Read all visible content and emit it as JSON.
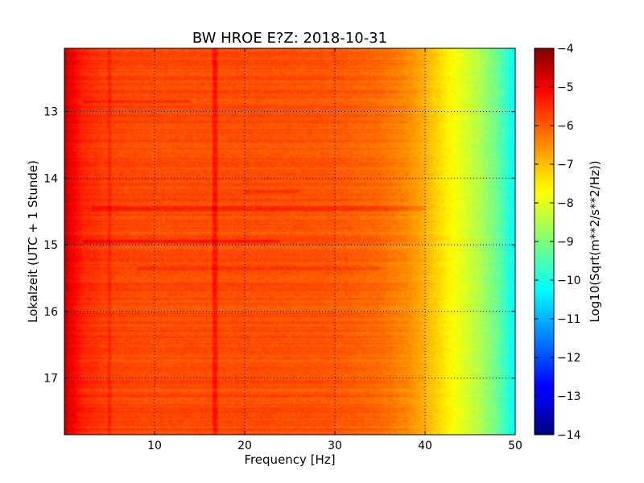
{
  "chart_data": {
    "type": "heatmap",
    "title": "BW HROE E?Z: 2018-10-31",
    "xlabel": "Frequency [Hz]",
    "ylabel": "Lokalzeit (UTC + 1 Stunde)",
    "xlim": [
      0,
      50
    ],
    "ylim": [
      17.85,
      12.05
    ],
    "x_ticks": [
      10,
      20,
      30,
      40,
      50
    ],
    "y_ticks": [
      13,
      14,
      15,
      16,
      17
    ],
    "grid": true,
    "colorbar": {
      "label": "Log10(Sqrt(m**2/s**2/Hz))",
      "range": [
        -14,
        -4
      ],
      "ticks": [
        -4,
        -5,
        -6,
        -7,
        -8,
        -9,
        -10,
        -11,
        -12,
        -13,
        -14
      ],
      "colormap": "jet"
    },
    "spectral_profile": {
      "frequency_hz": [
        0,
        0.5,
        2,
        5,
        10,
        15,
        20,
        25,
        30,
        35,
        38,
        40,
        42,
        44,
        46,
        48,
        50
      ],
      "log10_amplitude": [
        -4.6,
        -5.0,
        -5.6,
        -5.9,
        -6.0,
        -6.0,
        -6.0,
        -6.05,
        -6.1,
        -6.3,
        -6.6,
        -7.0,
        -7.5,
        -8.0,
        -8.5,
        -9.2,
        -10.3
      ]
    },
    "features": [
      {
        "type": "vertical_line",
        "frequency_hz": 16.7,
        "delta": 0.55
      },
      {
        "type": "vertical_line",
        "frequency_hz": 5.0,
        "delta": 0.3
      },
      {
        "type": "horizontal_band",
        "time": 14.45,
        "f_from": 3,
        "f_to": 40,
        "delta": 0.35
      },
      {
        "type": "horizontal_band",
        "time": 14.95,
        "f_from": 2,
        "f_to": 24,
        "delta": 0.45
      },
      {
        "type": "horizontal_band",
        "time": 12.85,
        "f_from": 2,
        "f_to": 14,
        "delta": 0.35
      },
      {
        "type": "horizontal_band",
        "time": 15.35,
        "f_from": 8,
        "f_to": 35,
        "delta": 0.25
      },
      {
        "type": "horizontal_band",
        "time": 14.2,
        "f_from": 20,
        "f_to": 26,
        "delta": 0.3
      }
    ]
  }
}
